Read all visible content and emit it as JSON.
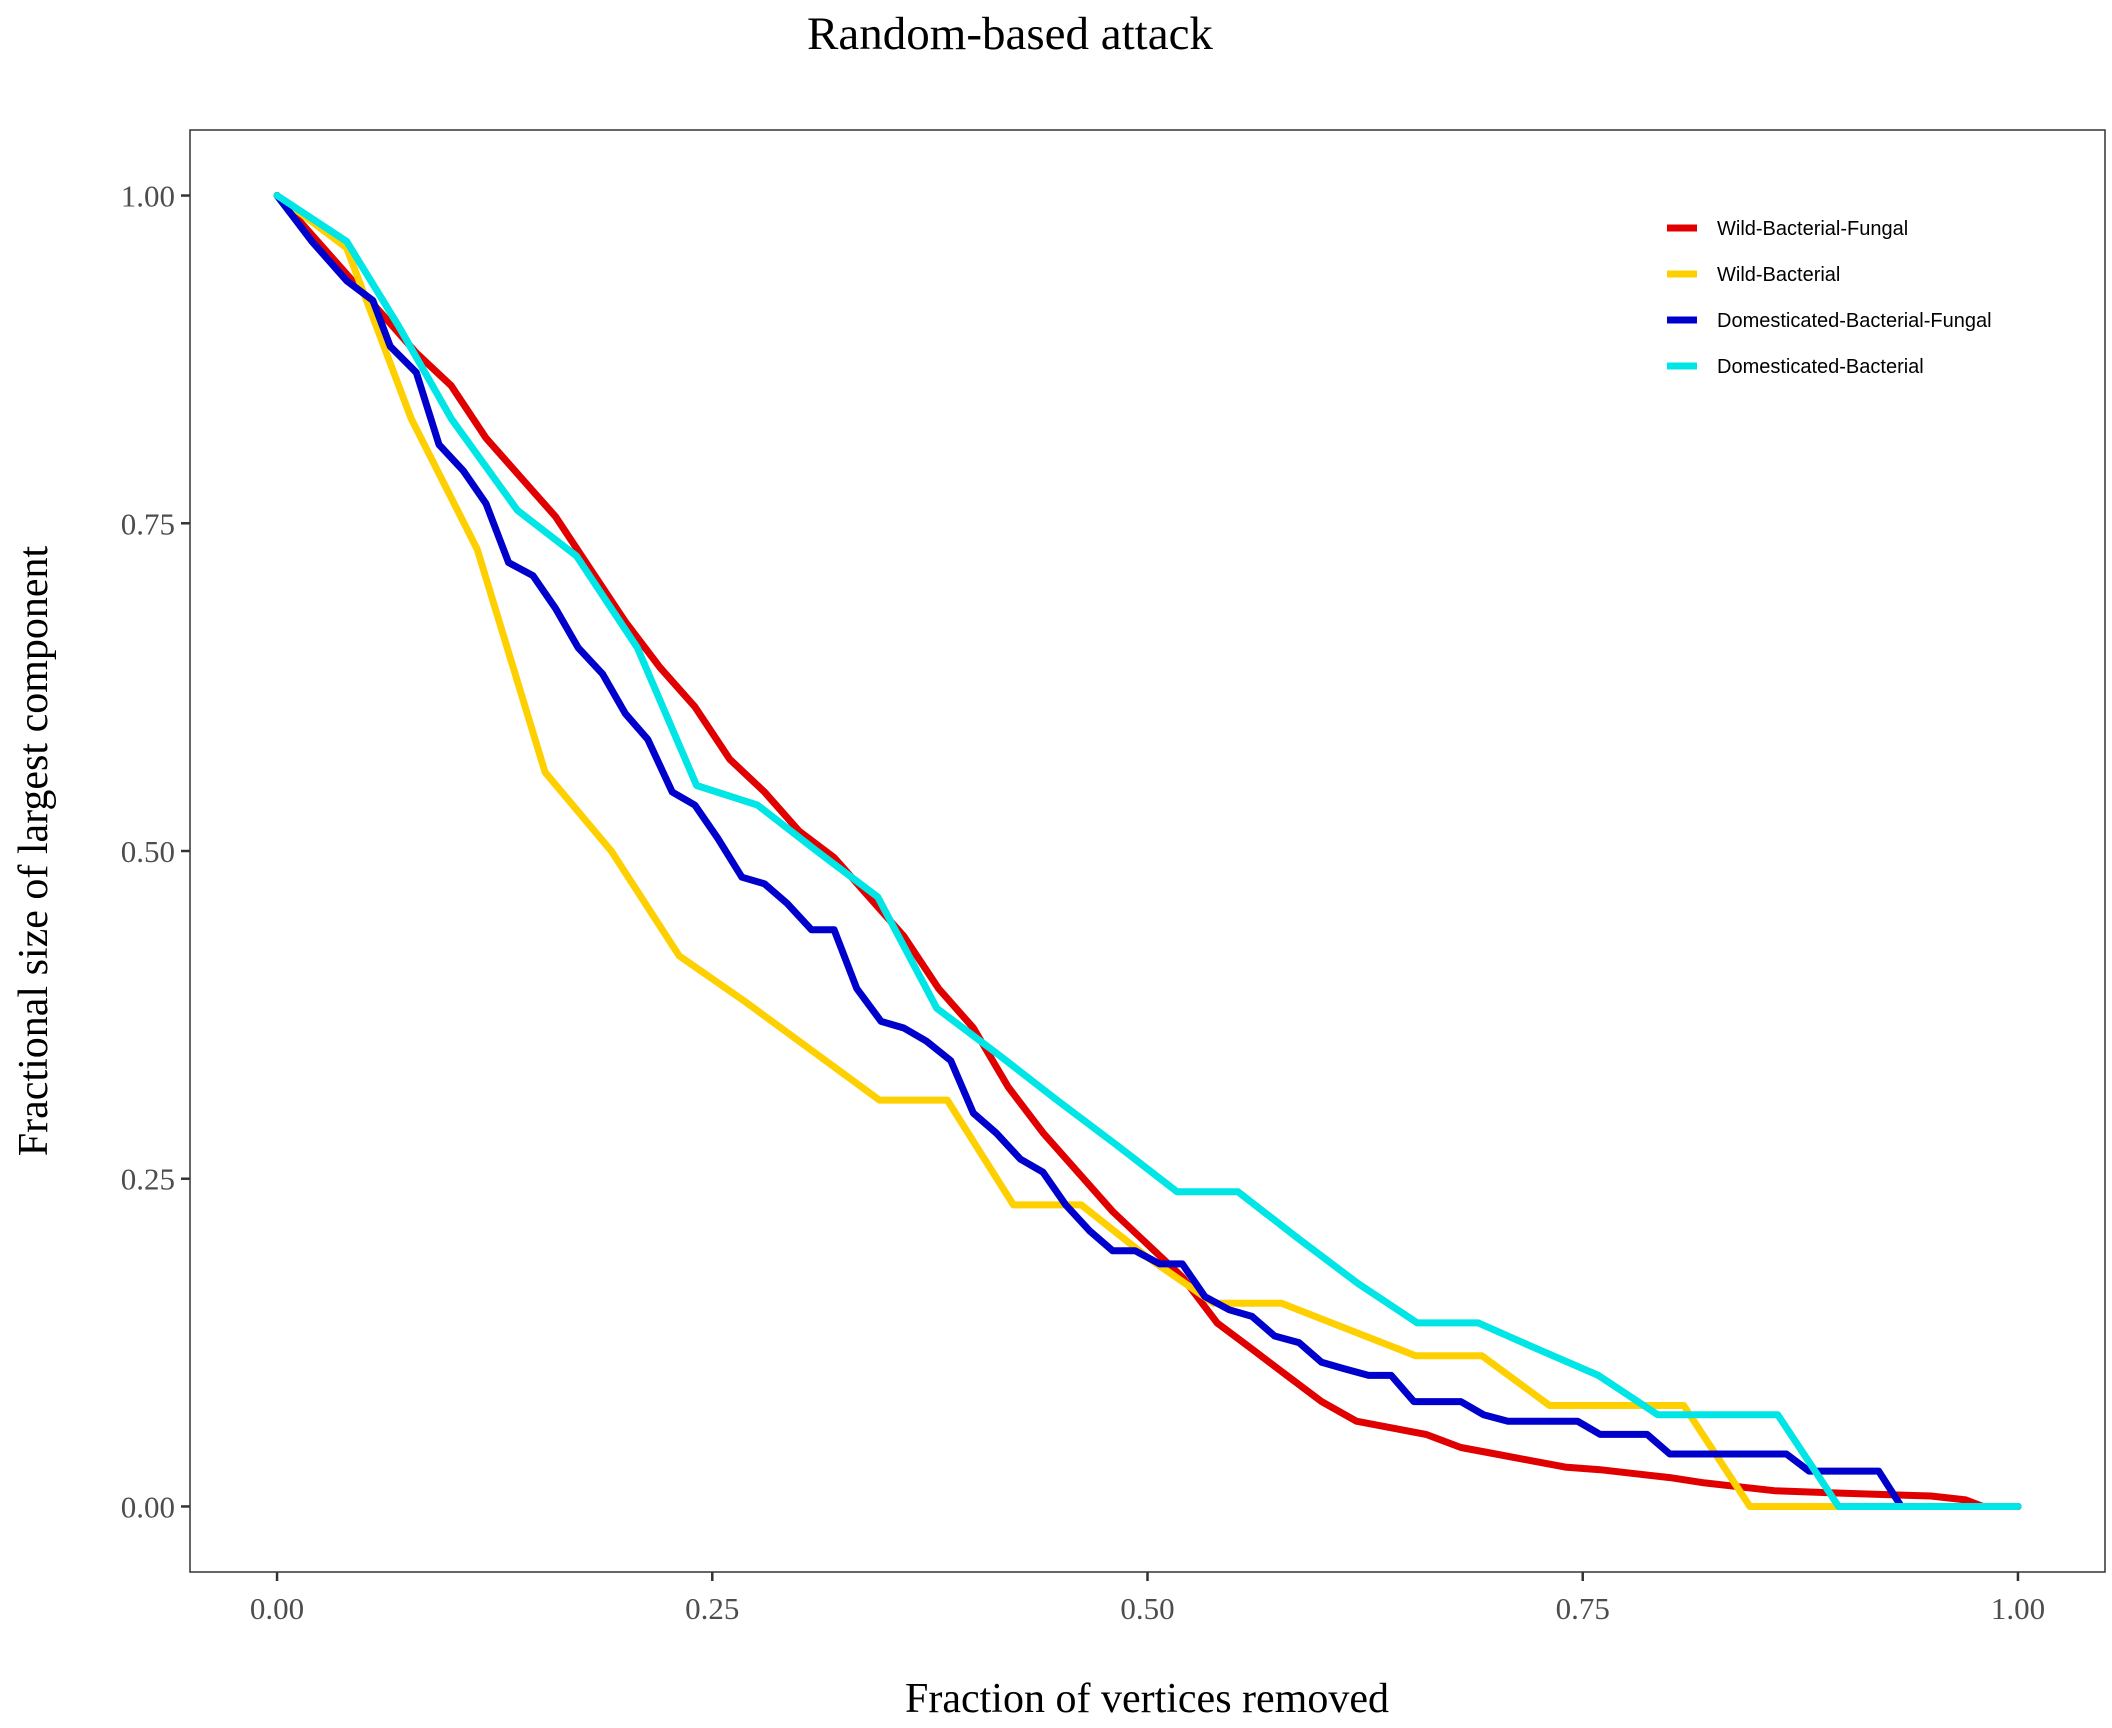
{
  "chart_data": {
    "type": "line",
    "title": "Random-based attack",
    "xlabel": "Fraction of vertices removed",
    "ylabel": "Fractional size of largest component",
    "xlim": [
      -0.05,
      1.05
    ],
    "ylim": [
      -0.05,
      1.05
    ],
    "x_ticks": [
      0.0,
      0.25,
      0.5,
      0.75,
      1.0
    ],
    "x_tick_labels": [
      "0.00",
      "0.25",
      "0.50",
      "0.75",
      "1.00"
    ],
    "y_ticks": [
      0.0,
      0.25,
      0.5,
      0.75,
      1.0
    ],
    "y_tick_labels": [
      "0.00",
      "0.25",
      "0.50",
      "0.75",
      "1.00"
    ],
    "grid": false,
    "legend_position": "top-right",
    "series": [
      {
        "name": "Wild-Bacterial-Fungal",
        "color": "#E00000",
        "points": [
          [
            0.0,
            1.0
          ],
          [
            0.02,
            0.97
          ],
          [
            0.04,
            0.94
          ],
          [
            0.06,
            0.91
          ],
          [
            0.08,
            0.88
          ],
          [
            0.1,
            0.855
          ],
          [
            0.12,
            0.815
          ],
          [
            0.14,
            0.785
          ],
          [
            0.16,
            0.755
          ],
          [
            0.18,
            0.715
          ],
          [
            0.2,
            0.675
          ],
          [
            0.22,
            0.64
          ],
          [
            0.24,
            0.61
          ],
          [
            0.26,
            0.57
          ],
          [
            0.28,
            0.545
          ],
          [
            0.3,
            0.515
          ],
          [
            0.32,
            0.495
          ],
          [
            0.34,
            0.465
          ],
          [
            0.36,
            0.435
          ],
          [
            0.38,
            0.395
          ],
          [
            0.4,
            0.365
          ],
          [
            0.42,
            0.32
          ],
          [
            0.44,
            0.285
          ],
          [
            0.46,
            0.255
          ],
          [
            0.48,
            0.225
          ],
          [
            0.5,
            0.2
          ],
          [
            0.52,
            0.175
          ],
          [
            0.54,
            0.14
          ],
          [
            0.56,
            0.12
          ],
          [
            0.58,
            0.1
          ],
          [
            0.6,
            0.08
          ],
          [
            0.62,
            0.065
          ],
          [
            0.64,
            0.06
          ],
          [
            0.66,
            0.055
          ],
          [
            0.68,
            0.045
          ],
          [
            0.7,
            0.04
          ],
          [
            0.72,
            0.035
          ],
          [
            0.74,
            0.03
          ],
          [
            0.76,
            0.028
          ],
          [
            0.78,
            0.025
          ],
          [
            0.8,
            0.022
          ],
          [
            0.82,
            0.018
          ],
          [
            0.84,
            0.015
          ],
          [
            0.86,
            0.012
          ],
          [
            0.9,
            0.01
          ],
          [
            0.95,
            0.008
          ],
          [
            0.97,
            0.005
          ],
          [
            0.98,
            0.0
          ],
          [
            1.0,
            0.0
          ]
        ]
      },
      {
        "name": "Wild-Bacterial",
        "color": "#FFD000",
        "points": [
          [
            0.0,
            1.0
          ],
          [
            0.04,
            0.96
          ],
          [
            0.077,
            0.83
          ],
          [
            0.115,
            0.73
          ],
          [
            0.154,
            0.56
          ],
          [
            0.192,
            0.5
          ],
          [
            0.231,
            0.42
          ],
          [
            0.269,
            0.385
          ],
          [
            0.346,
            0.31
          ],
          [
            0.385,
            0.31
          ],
          [
            0.423,
            0.23
          ],
          [
            0.462,
            0.23
          ],
          [
            0.5,
            0.19
          ],
          [
            0.538,
            0.155
          ],
          [
            0.577,
            0.155
          ],
          [
            0.654,
            0.115
          ],
          [
            0.692,
            0.115
          ],
          [
            0.731,
            0.077
          ],
          [
            0.808,
            0.077
          ],
          [
            0.846,
            0.0
          ],
          [
            1.0,
            0.0
          ]
        ]
      },
      {
        "name": "Domesticated-Bacterial-Fungal",
        "color": "#0000CC",
        "points": [
          [
            0.0,
            1.0
          ],
          [
            0.02,
            0.965
          ],
          [
            0.04,
            0.935
          ],
          [
            0.055,
            0.92
          ],
          [
            0.065,
            0.885
          ],
          [
            0.08,
            0.865
          ],
          [
            0.093,
            0.81
          ],
          [
            0.107,
            0.79
          ],
          [
            0.12,
            0.765
          ],
          [
            0.133,
            0.72
          ],
          [
            0.147,
            0.71
          ],
          [
            0.16,
            0.685
          ],
          [
            0.173,
            0.655
          ],
          [
            0.187,
            0.635
          ],
          [
            0.2,
            0.605
          ],
          [
            0.213,
            0.585
          ],
          [
            0.227,
            0.545
          ],
          [
            0.24,
            0.535
          ],
          [
            0.253,
            0.51
          ],
          [
            0.267,
            0.48
          ],
          [
            0.28,
            0.475
          ],
          [
            0.293,
            0.46
          ],
          [
            0.307,
            0.44
          ],
          [
            0.32,
            0.44
          ],
          [
            0.333,
            0.395
          ],
          [
            0.347,
            0.37
          ],
          [
            0.36,
            0.365
          ],
          [
            0.373,
            0.355
          ],
          [
            0.387,
            0.34
          ],
          [
            0.4,
            0.3
          ],
          [
            0.413,
            0.285
          ],
          [
            0.427,
            0.265
          ],
          [
            0.44,
            0.255
          ],
          [
            0.453,
            0.23
          ],
          [
            0.467,
            0.21
          ],
          [
            0.48,
            0.195
          ],
          [
            0.493,
            0.195
          ],
          [
            0.507,
            0.185
          ],
          [
            0.52,
            0.185
          ],
          [
            0.533,
            0.16
          ],
          [
            0.547,
            0.15
          ],
          [
            0.56,
            0.145
          ],
          [
            0.573,
            0.13
          ],
          [
            0.587,
            0.125
          ],
          [
            0.6,
            0.11
          ],
          [
            0.613,
            0.105
          ],
          [
            0.627,
            0.1
          ],
          [
            0.64,
            0.1
          ],
          [
            0.653,
            0.08
          ],
          [
            0.667,
            0.08
          ],
          [
            0.68,
            0.08
          ],
          [
            0.693,
            0.07
          ],
          [
            0.707,
            0.065
          ],
          [
            0.72,
            0.065
          ],
          [
            0.733,
            0.065
          ],
          [
            0.747,
            0.065
          ],
          [
            0.76,
            0.055
          ],
          [
            0.773,
            0.055
          ],
          [
            0.787,
            0.055
          ],
          [
            0.8,
            0.04
          ],
          [
            0.813,
            0.04
          ],
          [
            0.827,
            0.04
          ],
          [
            0.84,
            0.04
          ],
          [
            0.853,
            0.04
          ],
          [
            0.867,
            0.04
          ],
          [
            0.88,
            0.027
          ],
          [
            0.893,
            0.027
          ],
          [
            0.907,
            0.027
          ],
          [
            0.92,
            0.027
          ],
          [
            0.933,
            0.0
          ],
          [
            1.0,
            0.0
          ]
        ]
      },
      {
        "name": "Domesticated-Bacterial",
        "color": "#00E5E5",
        "points": [
          [
            0.0,
            1.0
          ],
          [
            0.04,
            0.965
          ],
          [
            0.07,
            0.9
          ],
          [
            0.1,
            0.83
          ],
          [
            0.138,
            0.76
          ],
          [
            0.172,
            0.725
          ],
          [
            0.207,
            0.655
          ],
          [
            0.241,
            0.55
          ],
          [
            0.276,
            0.535
          ],
          [
            0.31,
            0.5
          ],
          [
            0.345,
            0.465
          ],
          [
            0.379,
            0.38
          ],
          [
            0.414,
            0.345
          ],
          [
            0.448,
            0.31
          ],
          [
            0.483,
            0.275
          ],
          [
            0.517,
            0.24
          ],
          [
            0.552,
            0.24
          ],
          [
            0.586,
            0.205
          ],
          [
            0.621,
            0.17
          ],
          [
            0.655,
            0.14
          ],
          [
            0.69,
            0.14
          ],
          [
            0.724,
            0.12
          ],
          [
            0.759,
            0.1
          ],
          [
            0.793,
            0.07
          ],
          [
            0.828,
            0.07
          ],
          [
            0.862,
            0.07
          ],
          [
            0.897,
            0.0
          ],
          [
            1.0,
            0.0
          ]
        ]
      }
    ]
  }
}
